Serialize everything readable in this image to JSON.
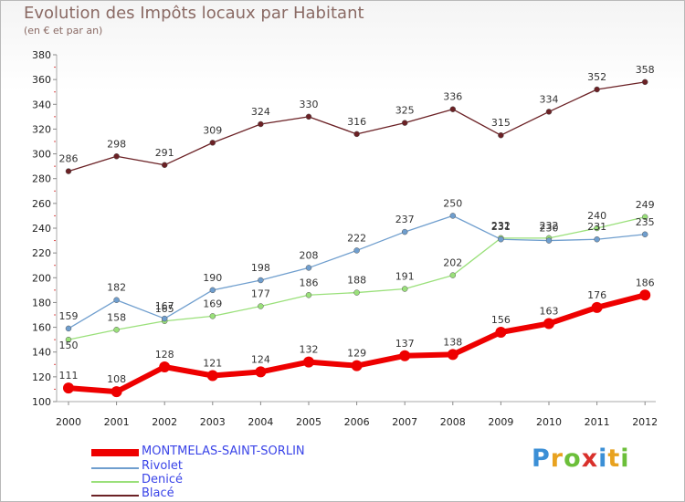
{
  "header": {
    "title": "Evolution des Impôts locaux par Habitant",
    "subtitle": "(en € et par an)"
  },
  "logo": {
    "text": "Proxiti"
  },
  "colors": {
    "MONTMELAS-SAINT-SORLIN": "#ee0000",
    "Rivolet": "#6f9ece",
    "Denicé": "#9ae07a",
    "Blacé": "#6b2125",
    "axis": "#aaaaaa",
    "legend_label": "#3a44e8"
  },
  "chart_data": {
    "type": "line",
    "title": "Evolution des Impôts locaux par Habitant",
    "subtitle": "(en € et par an)",
    "xlabel": "",
    "ylabel": "",
    "x": [
      "2000",
      "2001",
      "2002",
      "2003",
      "2004",
      "2005",
      "2006",
      "2007",
      "2008",
      "2009",
      "2010",
      "2011",
      "2012"
    ],
    "ylim": [
      100,
      380
    ],
    "yticks": [
      100,
      120,
      140,
      160,
      180,
      200,
      220,
      240,
      260,
      280,
      300,
      320,
      340,
      360,
      380
    ],
    "grid": false,
    "legend_position": "bottom-left",
    "series": [
      {
        "name": "Blacé",
        "values": [
          286,
          298,
          291,
          309,
          324,
          330,
          316,
          325,
          336,
          315,
          334,
          352,
          358
        ]
      },
      {
        "name": "Denicé",
        "values": [
          150,
          158,
          165,
          169,
          177,
          186,
          188,
          191,
          202,
          232,
          232,
          240,
          249
        ]
      },
      {
        "name": "Rivolet",
        "values": [
          159,
          182,
          167,
          190,
          198,
          208,
          222,
          237,
          250,
          231,
          230,
          231,
          235
        ]
      },
      {
        "name": "MONTMELAS-SAINT-SORLIN",
        "values": [
          111,
          108,
          128,
          121,
          124,
          132,
          129,
          137,
          138,
          156,
          163,
          176,
          186
        ]
      }
    ]
  }
}
